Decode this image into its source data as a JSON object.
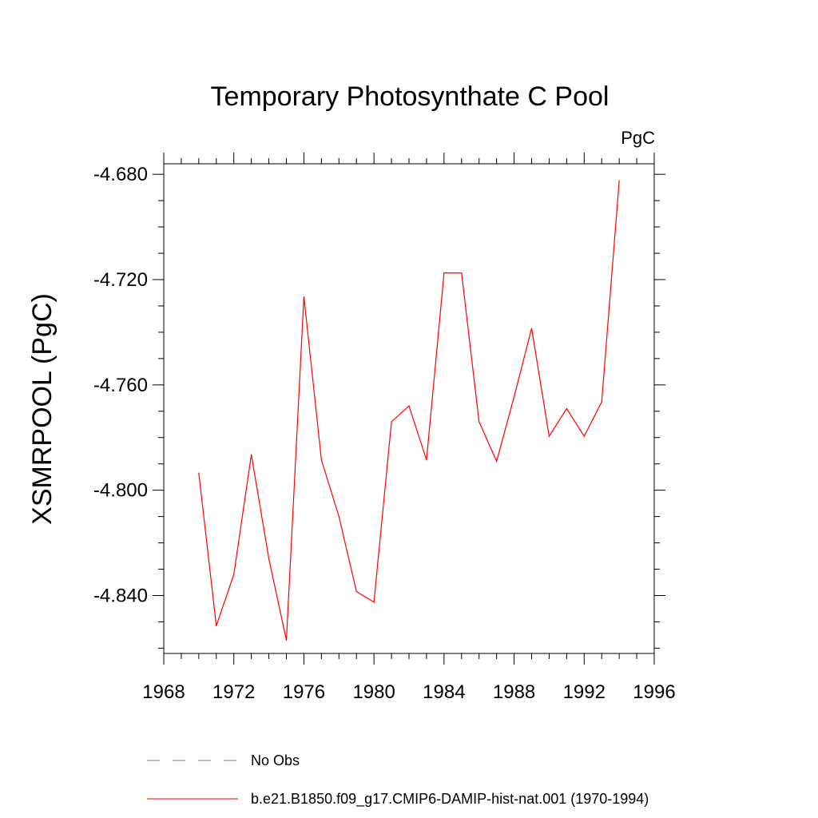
{
  "chart_data": {
    "type": "line",
    "title": "Temporary Photosynthate C Pool",
    "units_label": "PgC",
    "ylabel": "XSMRPOOL  (PgC)",
    "xlabel": "",
    "xlim": [
      1968,
      1996
    ],
    "ylim": [
      -4.862,
      -4.676
    ],
    "x_ticks": [
      1968,
      1972,
      1976,
      1980,
      1984,
      1988,
      1992,
      1996
    ],
    "x_tick_labels": [
      "1968",
      "1972",
      "1976",
      "1980",
      "1984",
      "1988",
      "1992",
      "1996"
    ],
    "y_ticks": [
      -4.84,
      -4.8,
      -4.76,
      -4.72,
      -4.68
    ],
    "y_tick_labels": [
      "-4.840",
      "-4.800",
      "-4.760",
      "-4.720",
      "-4.680"
    ],
    "grid": false,
    "legend_position": "bottom",
    "series": [
      {
        "name": "b.e21.B1850.f09_g17.CMIP6-DAMIP-hist-nat.001 (1970-1994)",
        "color": "#ff0000",
        "dash": "solid",
        "x": [
          1970,
          1971,
          1972,
          1973,
          1974,
          1975,
          1976,
          1977,
          1978,
          1979,
          1980,
          1981,
          1982,
          1983,
          1984,
          1985,
          1986,
          1987,
          1988,
          1989,
          1990,
          1991,
          1992,
          1993,
          1994
        ],
        "y": [
          -4.7935,
          -4.8515,
          -4.832,
          -4.7865,
          -4.826,
          -4.857,
          -4.7265,
          -4.7885,
          -4.81,
          -4.8385,
          -4.8425,
          -4.774,
          -4.768,
          -4.7885,
          -4.7175,
          -4.7175,
          -4.774,
          -4.789,
          -4.7645,
          -4.7385,
          -4.7795,
          -4.769,
          -4.7795,
          -4.7665,
          -4.6825
        ]
      }
    ],
    "legend": [
      {
        "label": "No Obs",
        "color": "#7070c0",
        "dash": "dashed"
      },
      {
        "label": "b.e21.B1850.f09_g17.CMIP6-DAMIP-hist-nat.001 (1970-1994)",
        "color": "#ff0000",
        "dash": "solid"
      }
    ]
  }
}
